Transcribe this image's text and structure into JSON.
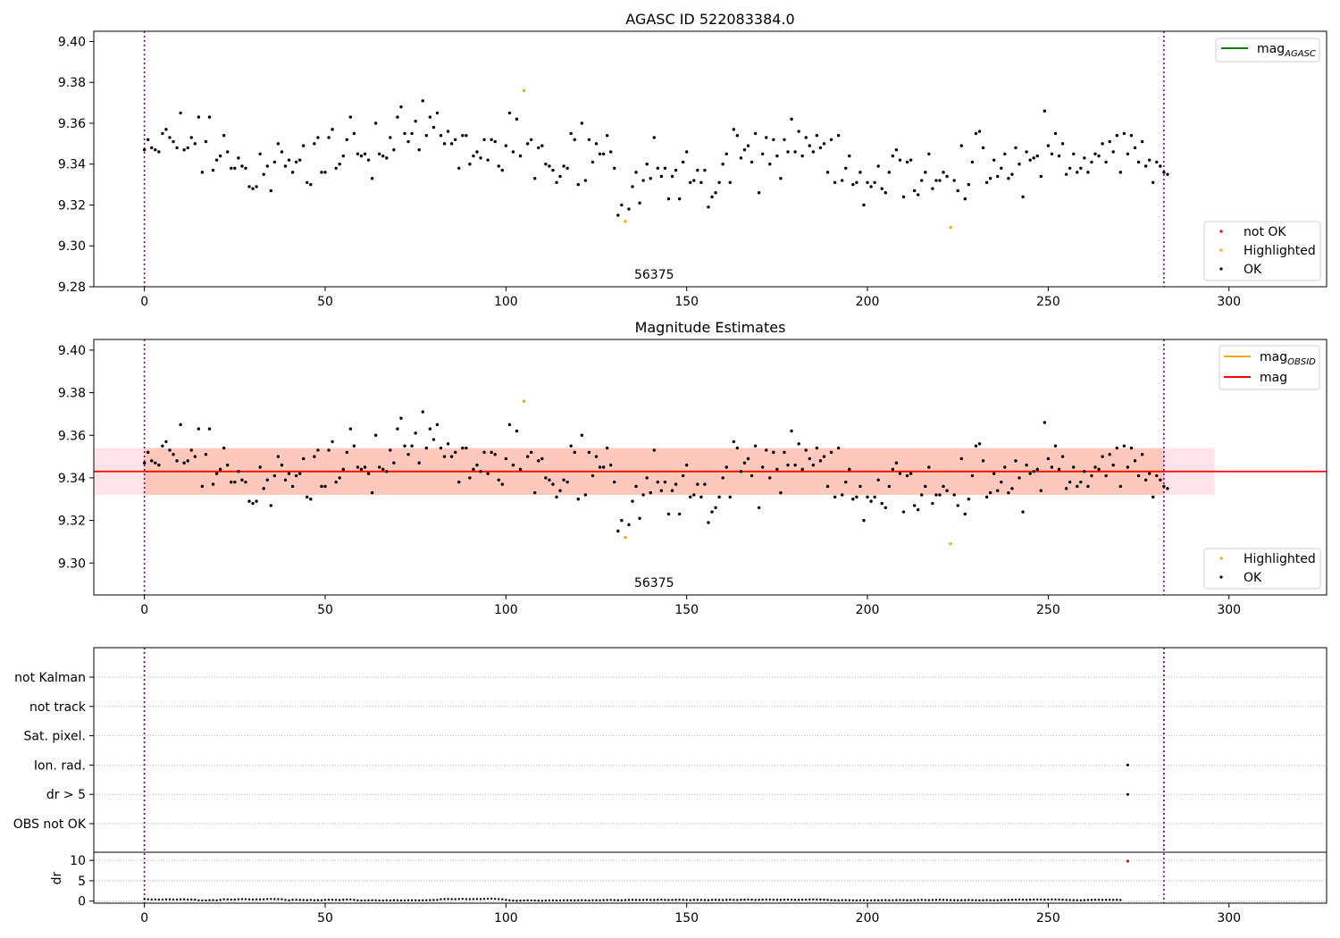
{
  "chart_data": [
    {
      "type": "scatter",
      "title": "AGASC ID 522083384.0",
      "xlabel": "",
      "ylabel": "",
      "xlim": [
        -14,
        327
      ],
      "ylim": [
        9.28,
        9.405
      ],
      "xticks": [
        "0",
        "50",
        "100",
        "150",
        "200",
        "250",
        "300"
      ],
      "yticks": [
        "9.28",
        "9.30",
        "9.32",
        "9.34",
        "9.36",
        "9.38",
        "9.40"
      ],
      "vlines_x": [
        0,
        282
      ],
      "annotation": "56375",
      "annotation_x": 141,
      "legend_lines": [
        {
          "label": "mag",
          "subscript": "AGASC",
          "color": "#008000"
        }
      ],
      "legend_markers": [
        {
          "label": "not OK",
          "color": "#ff0000"
        },
        {
          "label": "Highlighted",
          "color": "#ffa500"
        },
        {
          "label": "OK",
          "color": "#000000"
        }
      ],
      "highlighted": [
        [
          105,
          9.376
        ],
        [
          133,
          9.312
        ],
        [
          223,
          9.309
        ]
      ],
      "not_ok": []
    },
    {
      "type": "scatter",
      "title": "Magnitude Estimates",
      "xlabel": "",
      "ylabel": "",
      "xlim": [
        -14,
        327
      ],
      "ylim": [
        9.285,
        9.405
      ],
      "xticks": [
        "0",
        "50",
        "100",
        "150",
        "200",
        "250",
        "300"
      ],
      "yticks": [
        "9.30",
        "9.32",
        "9.34",
        "9.36",
        "9.38",
        "9.40"
      ],
      "vlines_x": [
        0,
        282
      ],
      "mean_mag": 9.343,
      "mag_band": [
        9.332,
        9.354
      ],
      "band_x": [
        -14,
        296
      ],
      "annotation": "56375",
      "annotation_x": 141,
      "legend_lines": [
        {
          "label": "mag",
          "subscript": "OBSID",
          "color": "#ffa500"
        },
        {
          "label": "mag",
          "subscript": "",
          "color": "#ff0000"
        }
      ],
      "legend_markers": [
        {
          "label": "Highlighted",
          "color": "#ffa500"
        },
        {
          "label": "OK",
          "color": "#000000"
        }
      ],
      "highlighted": [
        [
          105,
          9.376
        ],
        [
          133,
          9.312
        ],
        [
          223,
          9.309
        ]
      ]
    },
    {
      "type": "scatter",
      "title": "",
      "xlabel": "",
      "ylabel": "",
      "xlim": [
        -14,
        327
      ],
      "categories": [
        "not Kalman",
        "not track",
        "Sat. pixel.",
        "Ion. rad.",
        "dr > 5",
        "OBS not OK"
      ],
      "vlines_x": [
        0,
        282
      ],
      "flags": [
        {
          "category": "Ion. rad.",
          "x": 272
        },
        {
          "category": "dr > 5",
          "x": 272
        }
      ]
    },
    {
      "type": "scatter",
      "title": "",
      "xlabel": "",
      "ylabel": "dr",
      "xlim": [
        -14,
        327
      ],
      "ylim": [
        -0.5,
        12
      ],
      "xticks": [
        "0",
        "50",
        "100",
        "150",
        "200",
        "250",
        "300"
      ],
      "yticks": [
        "0",
        "5",
        "10"
      ],
      "vlines_x": [
        0,
        282
      ],
      "outlier": {
        "x": 272,
        "y": 9.8,
        "color": "#ff0000"
      }
    }
  ],
  "series_ok_mag": [
    9.347,
    9.352,
    9.348,
    9.347,
    9.346,
    9.355,
    9.357,
    9.353,
    9.351,
    9.348,
    9.365,
    9.347,
    9.348,
    9.353,
    9.35,
    9.363,
    9.336,
    9.351,
    9.363,
    9.337,
    9.342,
    9.344,
    9.354,
    9.346,
    9.338,
    9.338,
    9.343,
    9.339,
    9.338,
    9.329,
    9.328,
    9.329,
    9.345,
    9.335,
    9.339,
    9.327,
    9.341,
    9.35,
    9.346,
    9.339,
    9.342,
    9.336,
    9.341,
    9.342,
    9.349,
    9.331,
    9.33,
    9.35,
    9.353,
    9.336,
    9.336,
    9.353,
    9.357,
    9.338,
    9.34,
    9.344,
    9.352,
    9.363,
    9.355,
    9.345,
    9.344,
    9.345,
    9.342,
    9.333,
    9.36,
    9.345,
    9.344,
    9.343,
    9.353,
    9.347,
    9.363,
    9.368,
    9.355,
    9.351,
    9.355,
    9.361,
    9.347,
    9.371,
    9.354,
    9.363,
    9.358,
    9.365,
    9.354,
    9.35,
    9.356,
    9.35,
    9.352,
    9.338,
    9.354,
    9.354,
    9.34,
    9.344,
    9.346,
    9.343,
    9.352,
    9.342,
    9.352,
    9.351,
    9.339,
    9.337,
    9.349,
    9.365,
    9.346,
    9.362,
    9.344,
    9.368,
    9.35,
    9.352,
    9.333,
    9.348,
    9.349,
    9.34,
    9.339,
    9.337,
    9.331,
    9.334,
    9.339,
    9.338,
    9.355,
    9.352,
    9.33,
    9.36,
    9.332,
    9.352,
    9.341,
    9.35,
    9.345,
    9.345,
    9.354,
    9.346,
    9.338,
    9.315,
    9.32,
    9.331,
    9.318,
    9.329,
    9.336,
    9.321,
    9.332,
    9.34,
    9.333,
    9.353,
    9.338,
    9.334,
    9.338,
    9.323,
    9.334,
    9.337,
    9.323,
    9.341,
    9.346,
    9.331,
    9.332,
    9.337,
    9.331,
    9.337,
    9.319,
    9.324,
    9.326,
    9.331,
    9.34,
    9.345,
    9.331,
    9.357,
    9.354,
    9.343,
    9.347,
    9.349,
    9.341,
    9.355,
    9.326,
    9.345,
    9.353,
    9.34,
    9.352,
    9.344,
    9.333,
    9.352,
    9.346,
    9.362,
    9.346,
    9.356,
    9.344,
    9.353,
    9.349,
    9.346,
    9.354,
    9.348,
    9.35,
    9.336,
    9.352,
    9.331,
    9.354,
    9.332,
    9.338,
    9.344,
    9.33,
    9.331,
    9.336,
    9.32,
    9.331,
    9.329,
    9.331,
    9.339,
    9.328,
    9.326,
    9.336,
    9.344,
    9.347,
    9.342,
    9.324,
    9.341,
    9.342,
    9.327,
    9.325,
    9.332,
    9.336,
    9.345,
    9.328,
    9.332,
    9.332,
    9.336,
    9.334,
    9.33,
    9.332,
    9.327,
    9.349,
    9.323,
    9.33,
    9.341,
    9.355,
    9.356,
    9.348,
    9.331,
    9.333,
    9.342,
    9.334,
    9.338,
    9.345,
    9.333,
    9.335,
    9.348,
    9.34,
    9.324,
    9.346,
    9.342,
    9.343,
    9.344,
    9.334,
    9.366,
    9.349,
    9.345,
    9.355,
    9.344,
    9.35,
    9.335,
    9.338,
    9.345,
    9.336,
    9.338,
    9.343,
    9.336,
    9.341,
    9.345,
    9.344,
    9.35,
    9.341,
    9.351,
    9.346,
    9.354,
    9.336,
    9.355,
    9.345,
    9.354,
    9.348,
    9.341,
    9.351,
    9.339,
    9.342,
    9.331,
    9.341,
    9.339,
    9.336,
    9.335
  ],
  "series_dr": [
    0.5,
    0.45,
    0.4,
    0.42,
    0.38,
    0.4,
    0.43,
    0.41,
    0.39,
    0.4,
    0.42,
    0.44,
    0.4,
    0.38,
    0.35,
    0.2,
    0.18,
    0.2,
    0.22,
    0.25,
    0.2,
    0.3,
    0.45,
    0.42,
    0.4,
    0.38,
    0.45,
    0.5,
    0.48,
    0.42,
    0.4,
    0.43,
    0.41,
    0.45,
    0.5,
    0.52,
    0.5,
    0.48,
    0.46,
    0.3,
    0.2,
    0.32,
    0.35,
    0.3,
    0.28,
    0.25,
    0.3,
    0.22,
    0.25,
    0.2,
    0.3,
    0.35,
    0.32,
    0.3,
    0.28,
    0.35,
    0.38,
    0.4,
    0.3,
    0.2,
    0.15,
    0.18,
    0.2,
    0.22,
    0.2,
    0.18,
    0.15,
    0.2,
    0.18,
    0.22,
    0.2,
    0.18,
    0.16,
    0.2,
    0.22,
    0.2,
    0.18,
    0.2,
    0.22,
    0.25,
    0.28,
    0.3,
    0.45,
    0.5,
    0.52,
    0.5,
    0.48,
    0.52,
    0.55,
    0.5,
    0.48,
    0.5,
    0.52,
    0.5,
    0.55,
    0.58,
    0.6,
    0.55,
    0.5,
    0.45,
    0.3,
    0.2,
    0.15,
    0.1,
    0.12,
    0.15,
    0.2,
    0.18,
    0.15,
    0.12,
    0.1,
    0.15,
    0.18,
    0.2,
    0.18,
    0.15,
    0.2,
    0.22,
    0.2,
    0.18,
    0.2,
    0.22,
    0.2,
    0.18,
    0.2,
    0.22,
    0.2,
    0.25,
    0.28,
    0.3,
    0.25,
    0.22,
    0.2,
    0.25,
    0.3,
    0.32,
    0.3,
    0.28,
    0.3,
    0.32,
    0.3,
    0.28,
    0.32,
    0.35,
    0.3,
    0.28,
    0.3,
    0.32,
    0.35,
    0.3,
    0.28,
    0.25,
    0.3,
    0.32,
    0.3,
    0.28,
    0.25,
    0.3,
    0.32,
    0.3,
    0.28,
    0.32,
    0.35,
    0.3,
    0.28,
    0.32,
    0.35,
    0.38,
    0.35,
    0.3,
    0.32,
    0.35,
    0.38,
    0.4,
    0.35,
    0.32,
    0.3,
    0.35,
    0.38,
    0.35,
    0.3,
    0.32,
    0.35,
    0.38,
    0.4,
    0.42,
    0.4,
    0.38,
    0.35,
    0.3,
    0.25,
    0.22,
    0.2,
    0.22,
    0.25,
    0.22,
    0.2,
    0.18,
    0.2,
    0.22,
    0.2,
    0.18,
    0.2,
    0.22,
    0.2,
    0.25,
    0.22,
    0.2,
    0.25,
    0.28,
    0.25,
    0.22,
    0.2,
    0.25,
    0.28,
    0.3,
    0.28,
    0.25,
    0.28,
    0.3,
    0.32,
    0.3,
    0.28,
    0.25,
    0.22,
    0.2,
    0.22,
    0.25,
    0.28,
    0.25,
    0.22,
    0.2,
    0.22,
    0.25,
    0.22,
    0.2,
    0.22,
    0.25,
    0.28,
    0.3,
    0.32,
    0.35,
    0.38,
    0.35,
    0.32,
    0.35,
    0.38,
    0.4,
    0.38,
    0.35,
    0.4,
    0.42,
    0.4,
    0.38,
    0.35,
    0.3,
    0.28,
    0.25,
    0.22,
    0.2,
    0.25,
    0.28,
    0.3,
    0.32,
    0.35,
    0.3,
    0.32,
    0.35,
    0.3,
    0.32,
    0.28
  ]
}
